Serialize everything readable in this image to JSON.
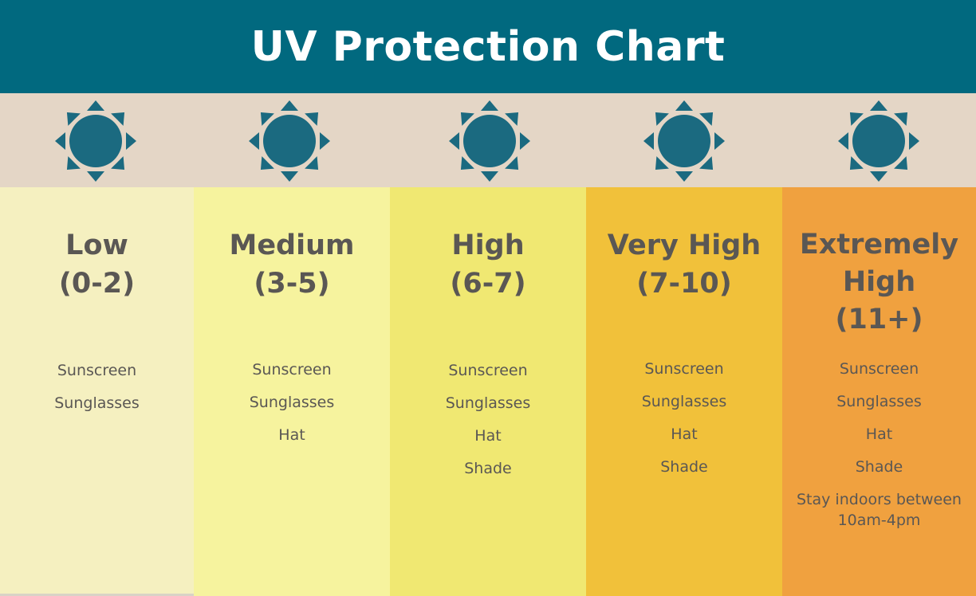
{
  "title": "UV Protection Chart",
  "colors": {
    "header_bg": "#01697f",
    "sun_band_bg": "#e4d6c6",
    "sun_color": "#1b6a80",
    "text": "#5a5754"
  },
  "columns": [
    {
      "title_lines": [
        "Low",
        "(0-2)"
      ],
      "color": "#f5f0c0",
      "items": [
        "Sunscreen",
        "Sunglasses"
      ]
    },
    {
      "title_lines": [
        "Medium",
        "(3-5)"
      ],
      "color": "#f6f39e",
      "items": [
        "Sunscreen",
        "Sunglasses",
        "Hat"
      ]
    },
    {
      "title_lines": [
        "High",
        "(6-7)"
      ],
      "color": "#f0e872",
      "items": [
        "Sunscreen",
        "Sunglasses",
        "Hat",
        "Shade"
      ]
    },
    {
      "title_lines": [
        "Very High",
        "(7-10)"
      ],
      "color": "#f1c13a",
      "items": [
        "Sunscreen",
        "Sunglasses",
        "Hat",
        "Shade"
      ]
    },
    {
      "title_lines": [
        "Extremely",
        "High",
        "(11+)"
      ],
      "color": "#f0a13f",
      "items": [
        "Sunscreen",
        "Sunglasses",
        "Hat",
        "Shade",
        "Stay indoors between",
        "10am-4pm"
      ]
    }
  ]
}
